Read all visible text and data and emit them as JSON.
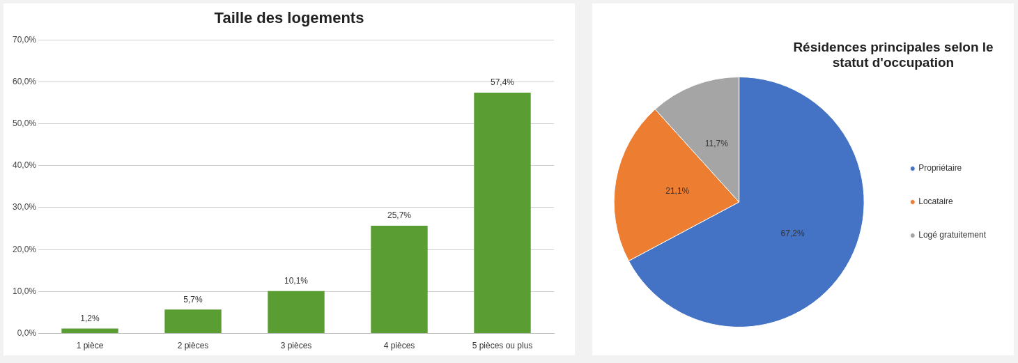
{
  "chart_data": [
    {
      "type": "bar",
      "title": "Taille des logements",
      "categories": [
        "1 pièce",
        "2 pièces",
        "3 pièces",
        "4 pièces",
        "5 pièces ou plus"
      ],
      "values": [
        1.2,
        5.7,
        10.1,
        25.7,
        57.4
      ],
      "value_labels": [
        "1,2%",
        "5,7%",
        "10,1%",
        "25,7%",
        "57,4%"
      ],
      "color": "#5a9e33",
      "ylim": [
        0,
        70
      ],
      "yticks": [
        {
          "value": 0,
          "label": "0,0%"
        },
        {
          "value": 10,
          "label": "10,0%"
        },
        {
          "value": 20,
          "label": "20,0%"
        },
        {
          "value": 30,
          "label": "30,0%"
        },
        {
          "value": 40,
          "label": "40,0%"
        },
        {
          "value": 50,
          "label": "50,0%"
        },
        {
          "value": 60,
          "label": "60,0%"
        },
        {
          "value": 70,
          "label": "70,0%"
        }
      ],
      "grid": "y",
      "legend": false
    },
    {
      "type": "pie",
      "title": "Résidences principales selon le statut d'occupation",
      "categories": [
        "Propriétaire",
        "Locataire",
        "Logé gratuitement"
      ],
      "values": [
        67.2,
        21.1,
        11.7
      ],
      "value_labels": [
        "67,2%",
        "21,1%",
        "11,7%"
      ],
      "colors": [
        "#4472c4",
        "#ed7d31",
        "#a5a5a5"
      ],
      "legend": "right"
    }
  ]
}
